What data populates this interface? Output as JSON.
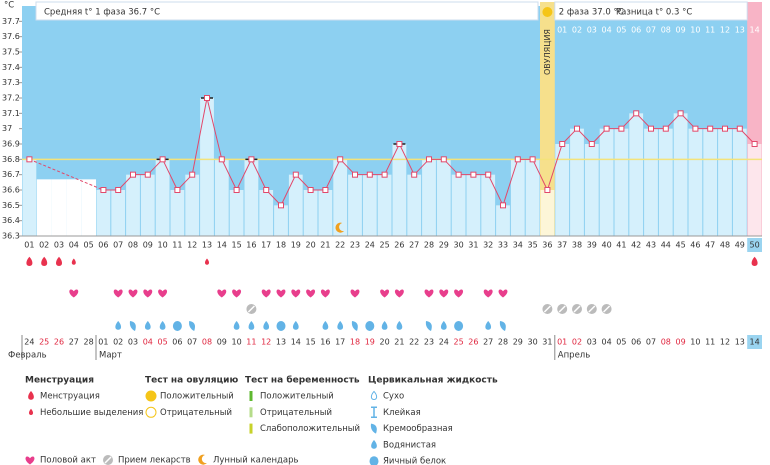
{
  "chart_data": {
    "type": "line",
    "y_unit": "°C",
    "phase1_summary": "Средняя t° 1 фаза 36.7 °C",
    "phase2_summary": "2 фаза 37.0 °C",
    "difference_summary": "Разница t° 0.3 °C",
    "ovulation_label": "ОВУЛЯЦИЯ",
    "categories": [
      "01",
      "02",
      "03",
      "04",
      "05",
      "06",
      "07",
      "08",
      "09",
      "10",
      "11",
      "12",
      "13",
      "14",
      "15",
      "16",
      "17",
      "18",
      "19",
      "20",
      "21",
      "22",
      "23",
      "24",
      "25",
      "26",
      "27",
      "28",
      "29",
      "30",
      "31",
      "32",
      "33",
      "34",
      "35",
      "36",
      "37",
      "38",
      "39",
      "40",
      "41",
      "42",
      "43",
      "44",
      "45",
      "46",
      "47",
      "48",
      "49",
      "50"
    ],
    "values": [
      36.8,
      null,
      null,
      null,
      null,
      36.6,
      36.6,
      36.7,
      36.7,
      36.8,
      36.6,
      36.7,
      37.2,
      36.8,
      36.6,
      36.8,
      36.6,
      36.5,
      36.7,
      36.6,
      36.6,
      36.8,
      36.7,
      36.7,
      36.7,
      36.9,
      36.7,
      36.8,
      36.8,
      36.7,
      36.7,
      36.7,
      36.5,
      36.8,
      36.8,
      36.6,
      36.9,
      37.0,
      36.9,
      37.0,
      37.0,
      37.1,
      37.0,
      37.0,
      37.1,
      37.0,
      37.0,
      37.0,
      37.0,
      36.9
    ],
    "color": "#e2486a",
    "phase2_days": [
      "01",
      "02",
      "03",
      "04",
      "05",
      "06",
      "07",
      "08",
      "09",
      "10",
      "11",
      "12",
      "13",
      "14"
    ],
    "coverline": 36.8,
    "ylim": [
      36.3,
      37.8
    ],
    "yticks": [
      36.3,
      36.4,
      36.5,
      36.6,
      36.7,
      36.8,
      36.9,
      37,
      37.1,
      37.2,
      37.3,
      37.4,
      37.5,
      37.6,
      37.7
    ],
    "dates": [
      "24",
      "25",
      "26",
      "27",
      "28",
      "01",
      "02",
      "03",
      "04",
      "05",
      "06",
      "07",
      "08",
      "09",
      "10",
      "11",
      "12",
      "13",
      "14",
      "15",
      "16",
      "17",
      "18",
      "19",
      "20",
      "21",
      "22",
      "23",
      "24",
      "25",
      "26",
      "27",
      "28",
      "29",
      "30",
      "31",
      "01",
      "02",
      "03",
      "04",
      "05",
      "06",
      "07",
      "08",
      "09",
      "10",
      "11",
      "12",
      "13",
      "14"
    ],
    "months": [
      "Февраль",
      "Март",
      "Апрель"
    ],
    "legend_groups": [
      {
        "title": "Менструация",
        "items": [
          "Менструация",
          "Небольшие выделения"
        ]
      },
      {
        "title": "Тест на овуляцию",
        "items": [
          "Положительный",
          "Отрицательный"
        ]
      },
      {
        "title": "Тест на беременность",
        "items": [
          "Положительный",
          "Отрицательный",
          "Слабоположительный"
        ]
      },
      {
        "title": "Цервикальная жидкость",
        "items": [
          "Сухо",
          "Клейкая",
          "Кремообразная",
          "Водянистая",
          "Яичный белок"
        ]
      }
    ],
    "legend_bottom": [
      "Половой акт",
      "Прием лекарств",
      "Лунный календарь"
    ]
  }
}
